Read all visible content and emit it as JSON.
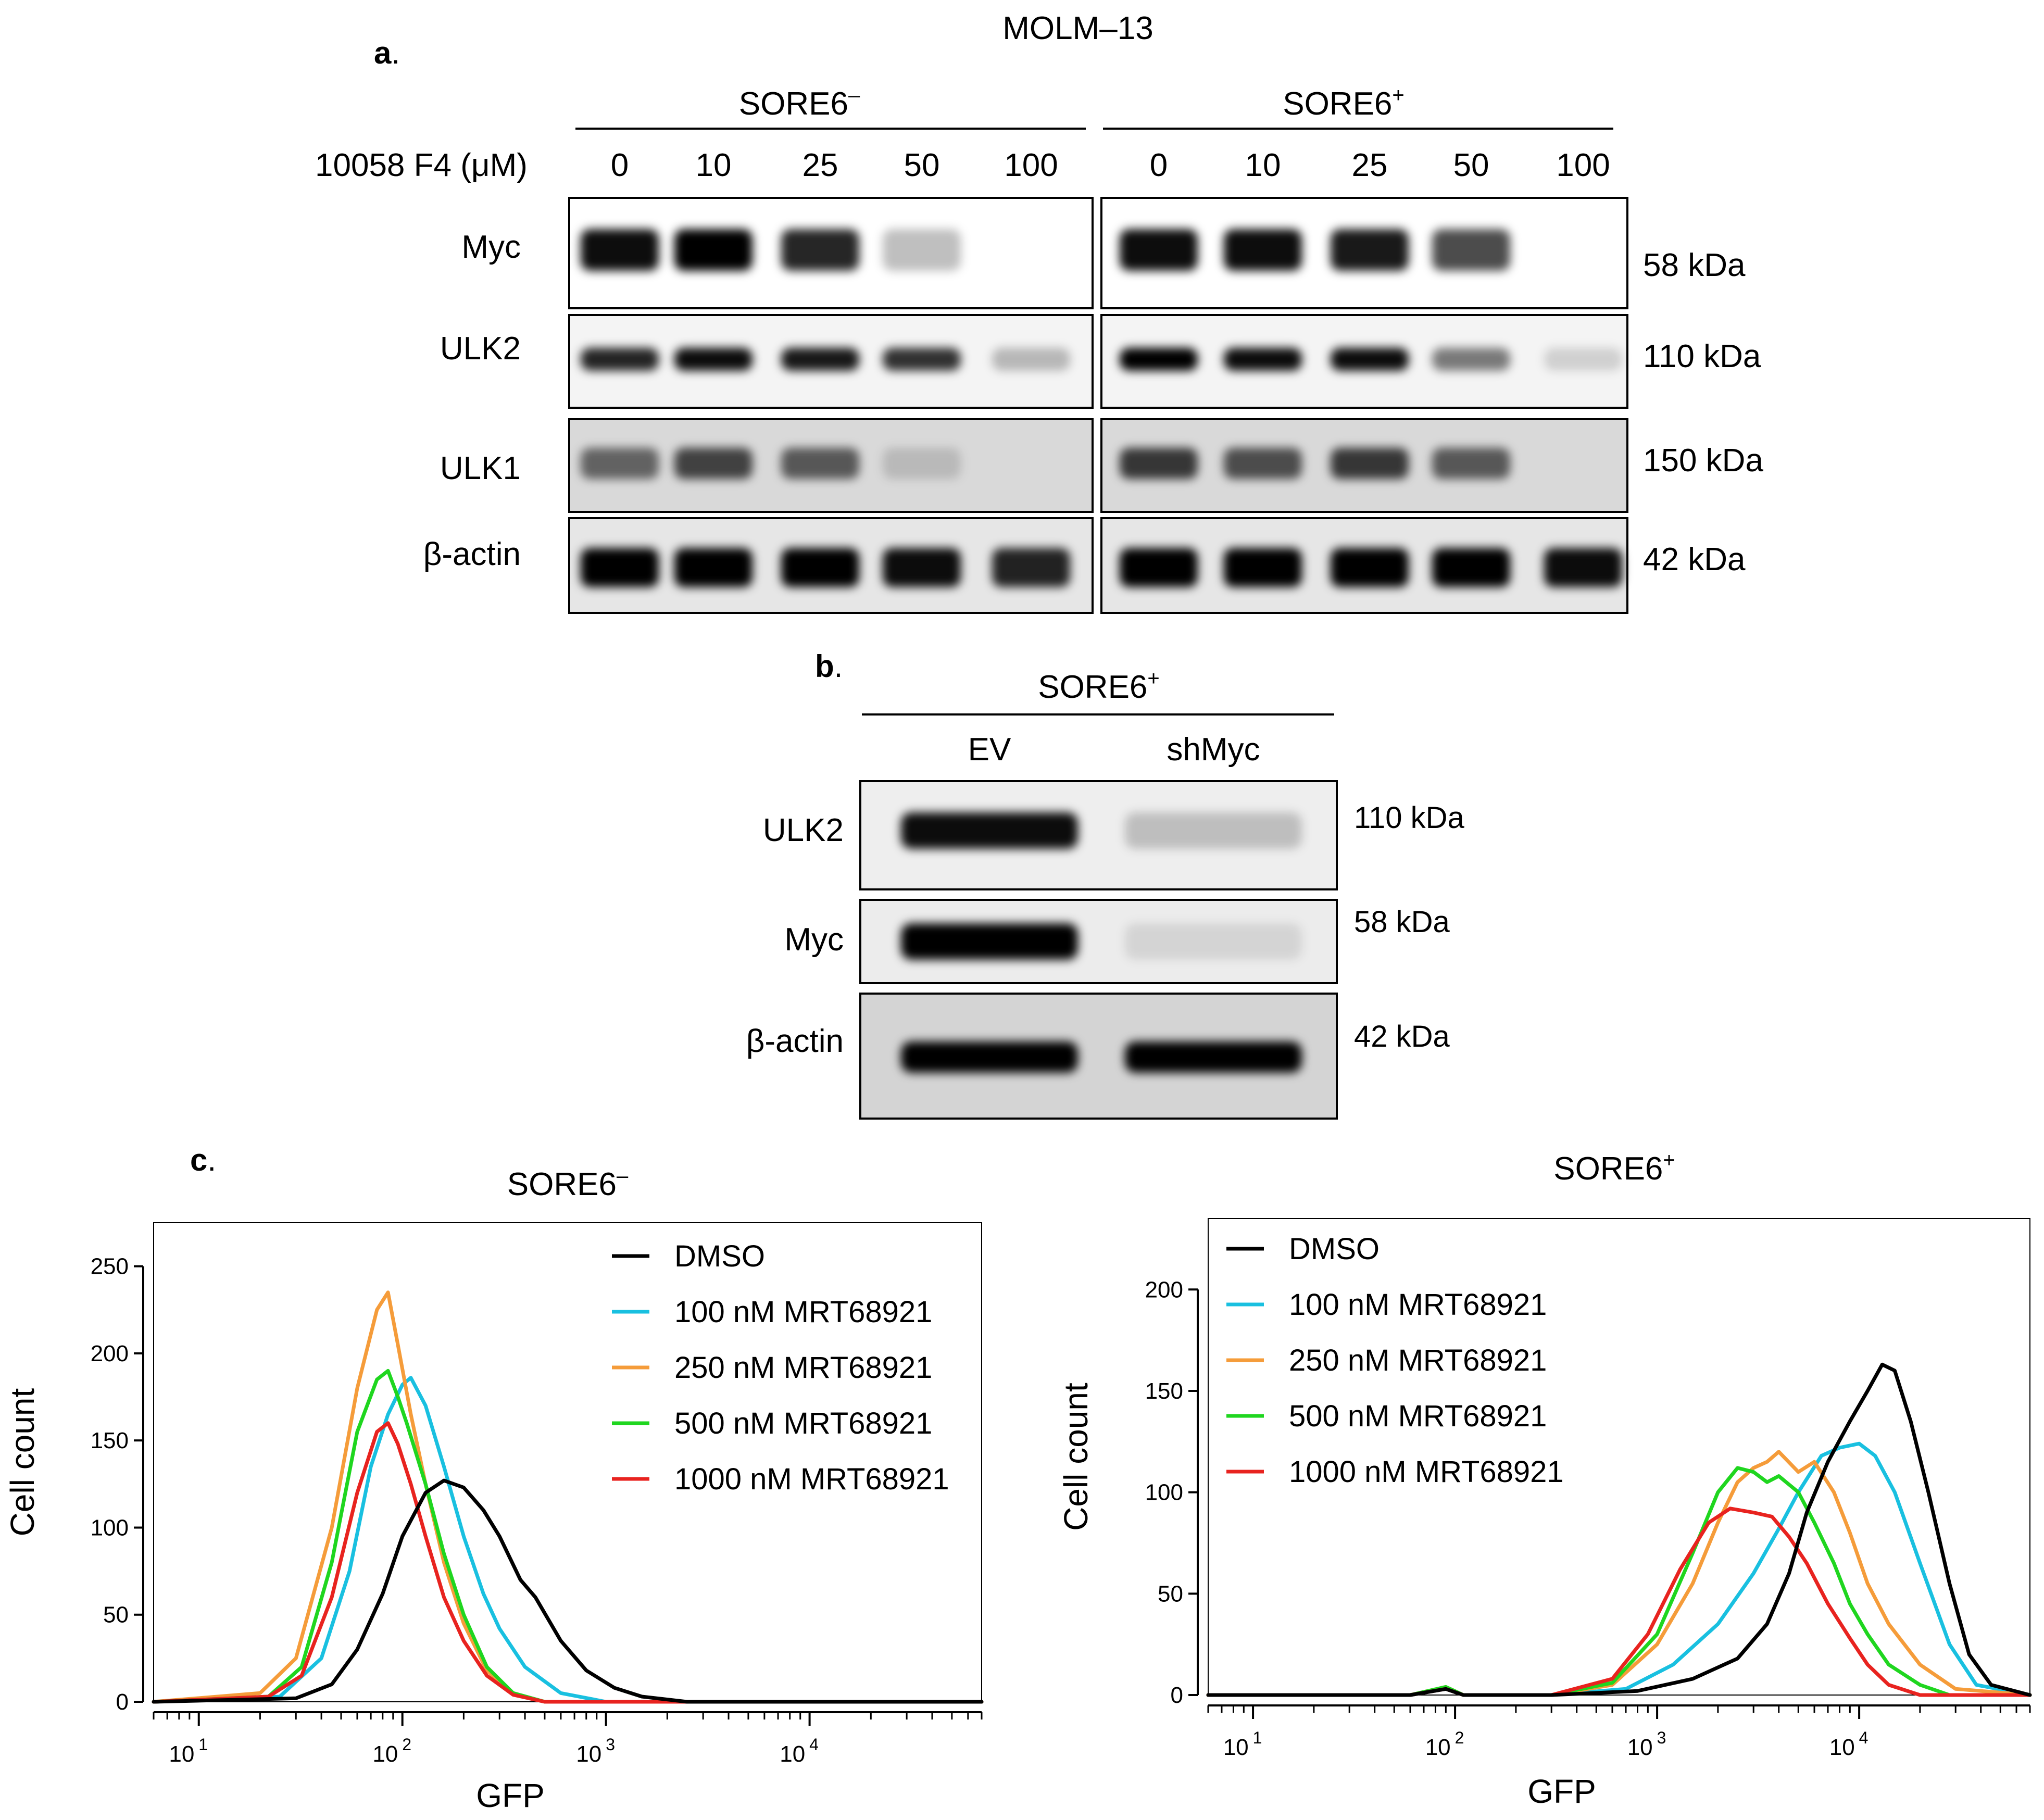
{
  "figure": {
    "title": "MOLM–13",
    "panel_a": {
      "letter": "a",
      "groups": [
        {
          "name": "SORE6",
          "sup": "–"
        },
        {
          "name": "SORE6",
          "sup": "+"
        }
      ],
      "treatment_label": "10058 F4 (μM)",
      "doses": [
        "0",
        "10",
        "25",
        "50",
        "100"
      ],
      "bands": [
        {
          "label": "Myc",
          "size": "58 kDa",
          "intensity": [
            [
              0.95,
              1.0,
              0.85,
              0.25,
              0.0
            ],
            [
              0.95,
              0.95,
              0.9,
              0.7,
              0.0
            ]
          ],
          "background": "#ffffff"
        },
        {
          "label": "ULK2",
          "size": "110 kDa",
          "intensity": [
            [
              0.85,
              0.95,
              0.9,
              0.8,
              0.25
            ],
            [
              1.0,
              0.95,
              0.95,
              0.5,
              0.15
            ]
          ],
          "background": "#f4f4f4"
        },
        {
          "label": "ULK1",
          "size": "150 kDa",
          "intensity": [
            [
              0.55,
              0.7,
              0.6,
              0.15,
              0.0
            ],
            [
              0.75,
              0.65,
              0.75,
              0.6,
              0.0
            ]
          ],
          "background": "#d9d9d9"
        },
        {
          "label": "β-actin",
          "size": "42 kDa",
          "intensity": [
            [
              1.0,
              1.0,
              1.0,
              0.95,
              0.85
            ],
            [
              1.0,
              1.0,
              1.0,
              1.0,
              0.95
            ]
          ],
          "background": "#e6e6e6"
        }
      ]
    },
    "panel_b": {
      "letter": "b",
      "group": {
        "name": "SORE6",
        "sup": "+"
      },
      "lanes": [
        "EV",
        "shMyc"
      ],
      "bands": [
        {
          "label": "ULK2",
          "size": "110 kDa",
          "intensity": [
            0.95,
            0.2
          ],
          "background": "#eeeeee"
        },
        {
          "label": "Myc",
          "size": "58 kDa",
          "intensity": [
            1.0,
            0.1
          ],
          "background": "#ececec"
        },
        {
          "label": "β-actin",
          "size": "42 kDa",
          "intensity": [
            1.0,
            1.0
          ],
          "background": "#d4d4d4"
        }
      ]
    },
    "panel_c": {
      "letter": "c"
    },
    "colors": {
      "DMSO": "#000000",
      "100 nM MRT68921": "#19c0e0",
      "250 nM MRT68921": "#f59c3a",
      "500 nM MRT68921": "#1fd61f",
      "1000 nM MRT68921": "#e8231f"
    }
  },
  "chart_data": [
    {
      "type": "line",
      "title": "SORE6",
      "title_sup": "–",
      "xlabel": "GFP",
      "ylabel": "Cell count",
      "xscale": "log",
      "xlim": [
        6,
        70000
      ],
      "ylim": [
        0,
        275
      ],
      "yticks": [
        0,
        50,
        100,
        150,
        200,
        250
      ],
      "xticks": [
        {
          "base": "10",
          "exp": "1",
          "value": 10
        },
        {
          "base": "10",
          "exp": "2",
          "value": 100
        },
        {
          "base": "10",
          "exp": "3",
          "value": 1000
        },
        {
          "base": "10",
          "exp": "4",
          "value": 10000
        }
      ],
      "legend": [
        "DMSO",
        "100 nM MRT68921",
        "250 nM MRT68921",
        "500 nM MRT68921",
        "1000 nM MRT68921"
      ],
      "legend_position": "top-right",
      "series": [
        {
          "name": "DMSO",
          "x": [
            6,
            30,
            45,
            60,
            80,
            100,
            130,
            160,
            200,
            250,
            300,
            380,
            450,
            600,
            800,
            1100,
            1500,
            2500,
            70000
          ],
          "y": [
            0,
            2,
            10,
            30,
            62,
            95,
            120,
            127,
            123,
            110,
            95,
            70,
            60,
            35,
            18,
            8,
            3,
            0,
            0
          ]
        },
        {
          "name": "100 nM MRT68921",
          "x": [
            6,
            25,
            40,
            55,
            70,
            85,
            100,
            110,
            130,
            160,
            200,
            250,
            300,
            400,
            600,
            1000,
            70000
          ],
          "y": [
            0,
            3,
            25,
            75,
            135,
            165,
            182,
            186,
            170,
            135,
            95,
            62,
            42,
            20,
            5,
            0,
            0
          ]
        },
        {
          "name": "250 nM MRT68921",
          "x": [
            6,
            20,
            30,
            45,
            60,
            75,
            85,
            95,
            110,
            130,
            160,
            200,
            260,
            350,
            500,
            70000
          ],
          "y": [
            0,
            5,
            25,
            100,
            180,
            225,
            235,
            205,
            165,
            125,
            80,
            45,
            18,
            5,
            0,
            0
          ]
        },
        {
          "name": "500 nM MRT68921",
          "x": [
            6,
            22,
            32,
            45,
            60,
            75,
            85,
            95,
            105,
            130,
            160,
            200,
            260,
            350,
            500,
            70000
          ],
          "y": [
            0,
            3,
            20,
            80,
            155,
            185,
            190,
            175,
            160,
            125,
            85,
            50,
            20,
            5,
            0,
            0
          ]
        },
        {
          "name": "1000 nM MRT68921",
          "x": [
            6,
            22,
            32,
            45,
            60,
            75,
            85,
            95,
            110,
            130,
            160,
            200,
            260,
            350,
            500,
            70000
          ],
          "y": [
            0,
            3,
            15,
            60,
            120,
            155,
            160,
            148,
            125,
            95,
            60,
            35,
            15,
            4,
            0,
            0
          ]
        }
      ]
    },
    {
      "type": "line",
      "title": "SORE6",
      "title_sup": "+",
      "xlabel": "GFP",
      "ylabel": "Cell count",
      "xscale": "log",
      "xlim": [
        6,
        70000
      ],
      "ylim": [
        0,
        235
      ],
      "yticks": [
        0,
        50,
        100,
        150,
        200
      ],
      "xticks": [
        {
          "base": "10",
          "exp": "1",
          "value": 10
        },
        {
          "base": "10",
          "exp": "2",
          "value": 100
        },
        {
          "base": "10",
          "exp": "3",
          "value": 1000
        },
        {
          "base": "10",
          "exp": "4",
          "value": 10000
        }
      ],
      "legend": [
        "DMSO",
        "100 nM MRT68921",
        "250 nM MRT68921",
        "500 nM MRT68921",
        "1000 nM MRT68921"
      ],
      "legend_position": "top-left",
      "series": [
        {
          "name": "DMSO",
          "x": [
            6,
            60,
            90,
            110,
            300,
            800,
            1500,
            2500,
            3500,
            4500,
            5500,
            7000,
            9000,
            11000,
            13000,
            15000,
            18000,
            22000,
            28000,
            35000,
            45000,
            70000
          ],
          "y": [
            0,
            0,
            3,
            0,
            0,
            2,
            8,
            18,
            35,
            60,
            90,
            115,
            135,
            150,
            163,
            160,
            135,
            100,
            55,
            20,
            5,
            0
          ]
        },
        {
          "name": "100 nM MRT68921",
          "x": [
            6,
            60,
            90,
            110,
            300,
            700,
            1200,
            2000,
            3000,
            4000,
            5000,
            6500,
            8000,
            10000,
            12000,
            15000,
            20000,
            28000,
            38000,
            70000
          ],
          "y": [
            0,
            0,
            3,
            0,
            0,
            3,
            15,
            35,
            60,
            82,
            100,
            118,
            122,
            124,
            118,
            100,
            65,
            25,
            5,
            0
          ]
        },
        {
          "name": "250 nM MRT68921",
          "x": [
            6,
            60,
            90,
            110,
            300,
            600,
            1000,
            1500,
            2000,
            2500,
            3000,
            3500,
            4000,
            5000,
            6000,
            7500,
            9000,
            11000,
            14000,
            20000,
            30000,
            70000
          ],
          "y": [
            0,
            0,
            4,
            0,
            0,
            5,
            25,
            55,
            85,
            105,
            112,
            115,
            120,
            110,
            115,
            100,
            80,
            55,
            35,
            15,
            3,
            0
          ]
        },
        {
          "name": "500 nM MRT68921",
          "x": [
            6,
            60,
            90,
            110,
            300,
            600,
            1000,
            1500,
            2000,
            2500,
            3000,
            3500,
            4000,
            5000,
            6000,
            7500,
            9000,
            11000,
            14000,
            20000,
            28000,
            70000
          ],
          "y": [
            0,
            0,
            4,
            0,
            0,
            6,
            30,
            70,
            100,
            112,
            110,
            105,
            108,
            100,
            85,
            65,
            45,
            30,
            15,
            5,
            0,
            0
          ]
        },
        {
          "name": "1000 nM MRT68921",
          "x": [
            6,
            60,
            90,
            110,
            300,
            600,
            900,
            1300,
            1800,
            2300,
            3000,
            3700,
            4500,
            5500,
            7000,
            9000,
            11000,
            14000,
            20000,
            28000,
            70000
          ],
          "y": [
            0,
            0,
            3,
            0,
            0,
            8,
            30,
            62,
            85,
            92,
            90,
            88,
            78,
            65,
            45,
            28,
            15,
            5,
            0,
            0,
            0
          ]
        }
      ]
    }
  ]
}
